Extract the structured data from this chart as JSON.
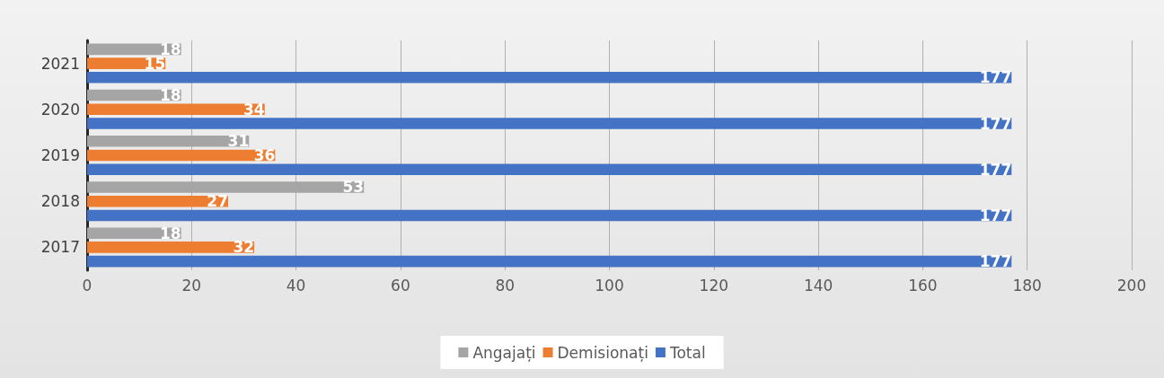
{
  "chart_data": {
    "type": "bar",
    "orientation": "horizontal",
    "categories": [
      "2021",
      "2020",
      "2019",
      "2018",
      "2017"
    ],
    "series": [
      {
        "name": "Angajați",
        "color": "#a5a5a5",
        "values": [
          18,
          18,
          31,
          53,
          18
        ]
      },
      {
        "name": "Demisionați",
        "color": "#ed7d31",
        "values": [
          15,
          34,
          36,
          27,
          32
        ]
      },
      {
        "name": "Total",
        "color": "#4472c4",
        "values": [
          177,
          177,
          177,
          177,
          177
        ]
      }
    ],
    "xlim": [
      0,
      200
    ],
    "xticks": [
      0,
      20,
      40,
      60,
      80,
      100,
      120,
      140,
      160,
      180,
      200
    ],
    "grid": "x",
    "legend": "bottom",
    "data_labels": true
  }
}
